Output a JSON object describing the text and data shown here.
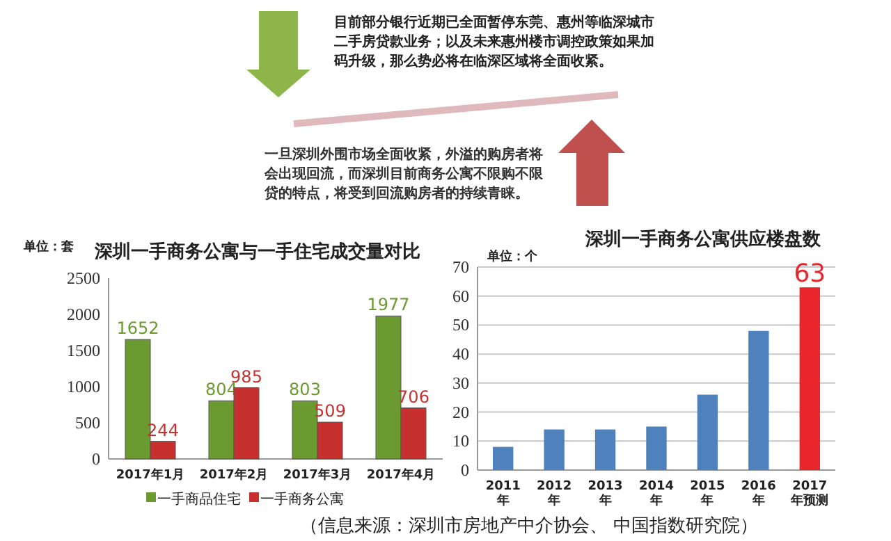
{
  "chart_data": [
    {
      "type": "other",
      "annotations": [
        "目前部分银行近期已全面暂停东莞、惠州等临深城市二手房贷款业务；以及未来惠州楼市调控政策如果加码升级，那么势必将在临深区域将全面收紧。",
        "一旦深圳外围市场全面收紧，外溢的购房者将会出现回流，而深圳目前商务公寓不限购不限贷的特点，将受到回流购房者的持续青睐。",
        "（信息来源：深圳市房地产中介协会、 中国指数研究院）"
      ]
    },
    {
      "type": "bar",
      "title": "深圳一手商务公寓与一手住宅成交量对比",
      "ylabel": "单位：套",
      "categories": [
        "2017年1月",
        "2017年2月",
        "2017年3月",
        "2017年4月"
      ],
      "series": [
        {
          "name": "一手商品住宅",
          "color": "#6b9a30",
          "values": [
            1652,
            804,
            803,
            1977
          ]
        },
        {
          "name": "一手商务公寓",
          "color": "#c8302f",
          "values": [
            244,
            985,
            509,
            706
          ]
        }
      ],
      "ylim": [
        0,
        2500
      ],
      "yticks": [
        0,
        500,
        1000,
        1500,
        2000,
        2500
      ],
      "data_labels": true,
      "legend": "bottom",
      "grid": false
    },
    {
      "type": "bar",
      "title": "深圳一手商务公寓供应楼盘数",
      "ylabel": "单位：个",
      "categories": [
        "2011年",
        "2012年",
        "2013年",
        "2014年",
        "2015年",
        "2016年",
        "2017年预测"
      ],
      "values": [
        8,
        14,
        14,
        15,
        26,
        48,
        63
      ],
      "colors": [
        "#4f81bd",
        "#4f81bd",
        "#4f81bd",
        "#4f81bd",
        "#4f81bd",
        "#4f81bd",
        "#e8262b"
      ],
      "value_labels": [
        null,
        null,
        null,
        null,
        null,
        null,
        "63"
      ],
      "ylim": [
        0,
        70
      ],
      "yticks": [
        0,
        10,
        20,
        30,
        40,
        50,
        60,
        70
      ],
      "grid": "y"
    }
  ]
}
